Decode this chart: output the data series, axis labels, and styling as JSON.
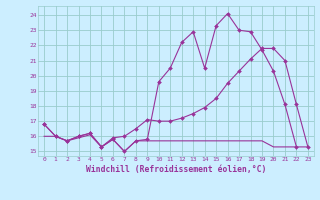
{
  "bg_color": "#cceeff",
  "grid_color": "#99cccc",
  "line_color": "#993399",
  "xlabel": "Windchill (Refroidissement éolien,°C)",
  "xlabel_color": "#993399",
  "ylabel_ticks": [
    15,
    16,
    17,
    18,
    19,
    20,
    21,
    22,
    23,
    24
  ],
  "xticks": [
    0,
    1,
    2,
    3,
    4,
    5,
    6,
    7,
    8,
    9,
    10,
    11,
    12,
    13,
    14,
    15,
    16,
    17,
    18,
    19,
    20,
    21,
    22,
    23
  ],
  "xlim": [
    -0.5,
    23.5
  ],
  "ylim": [
    14.7,
    24.6
  ],
  "series1_x": [
    0,
    1,
    2,
    3,
    4,
    5,
    6,
    7,
    8,
    9,
    10,
    11,
    12,
    13,
    14,
    15,
    16,
    17,
    18,
    19,
    20,
    21,
    22
  ],
  "series1_y": [
    16.8,
    16.0,
    15.7,
    16.0,
    16.2,
    15.3,
    15.8,
    15.0,
    15.7,
    15.8,
    19.6,
    20.5,
    22.2,
    22.9,
    20.5,
    23.3,
    24.1,
    23.0,
    22.9,
    21.7,
    20.3,
    18.1,
    15.3
  ],
  "series2_x": [
    0,
    1,
    2,
    3,
    4,
    5,
    6,
    7,
    8,
    9,
    10,
    11,
    12,
    13,
    14,
    15,
    16,
    17,
    18,
    19,
    20,
    21,
    22,
    23
  ],
  "series2_y": [
    16.8,
    16.0,
    15.7,
    16.0,
    16.2,
    15.3,
    15.9,
    16.0,
    16.5,
    17.1,
    17.0,
    17.0,
    17.2,
    17.5,
    17.9,
    18.5,
    19.5,
    20.3,
    21.1,
    21.8,
    21.8,
    21.0,
    18.1,
    15.3
  ],
  "series3_x": [
    0,
    1,
    2,
    3,
    4,
    5,
    6,
    7,
    8,
    9,
    10,
    11,
    12,
    13,
    14,
    15,
    16,
    17,
    18,
    19,
    20,
    21,
    22,
    23
  ],
  "series3_y": [
    16.0,
    16.0,
    15.7,
    15.9,
    16.1,
    15.3,
    15.8,
    15.0,
    15.7,
    15.7,
    15.7,
    15.7,
    15.7,
    15.7,
    15.7,
    15.7,
    15.7,
    15.7,
    15.7,
    15.7,
    15.3,
    15.3,
    15.3,
    15.3
  ]
}
